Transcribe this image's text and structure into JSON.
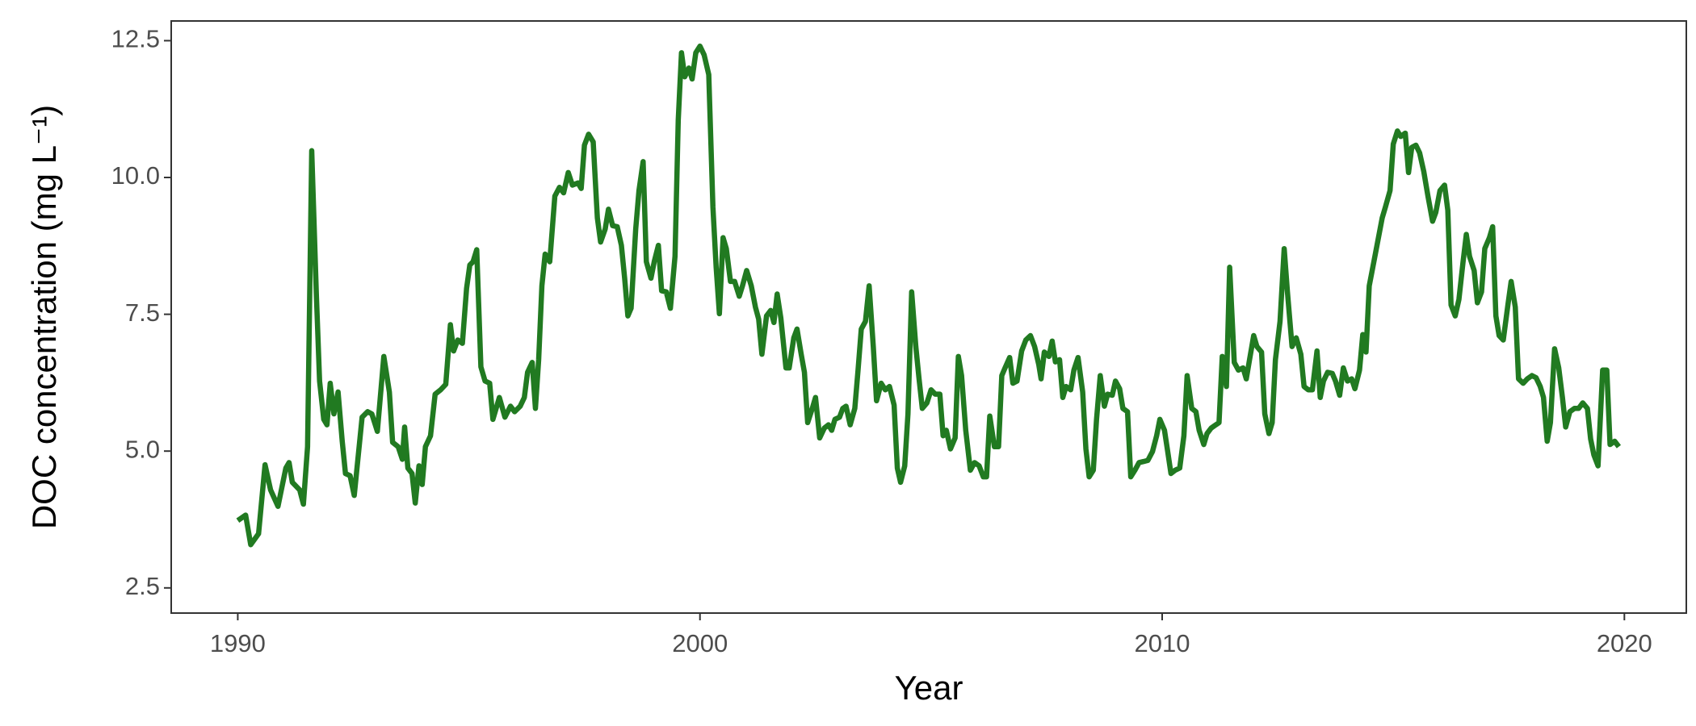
{
  "chart_data": {
    "type": "line",
    "x_label": "Year",
    "y_label": "DOC concentration (mg L⁻¹)",
    "color": "#217a21",
    "xlim": [
      1988.56,
      2021.34
    ],
    "ylim": [
      2.04,
      12.86
    ],
    "xticks": [
      1990,
      2000,
      2010,
      2020
    ],
    "yticks": [
      2.5,
      {
        "value": 5,
        "label": "5.0"
      },
      7.5,
      {
        "value": 10,
        "label": "10.0"
      },
      12.5
    ],
    "grid": false,
    "x": [
      1990,
      1990.17,
      1990.28,
      1990.45,
      1990.59,
      1990.71,
      1990.87,
      1991.04,
      1991.11,
      1991.18,
      1991.34,
      1991.42,
      1991.51,
      1991.6,
      1991.7,
      1991.77,
      1991.86,
      1991.93,
      1992,
      1992.08,
      1992.17,
      1992.26,
      1992.33,
      1992.43,
      1992.52,
      1992.69,
      1992.81,
      1992.9,
      1993.02,
      1993.16,
      1993.28,
      1993.35,
      1993.47,
      1993.56,
      1993.61,
      1993.68,
      1993.77,
      1993.84,
      1993.92,
      1993.99,
      1994.06,
      1994.17,
      1994.27,
      1994.39,
      1994.5,
      1994.6,
      1994.67,
      1994.76,
      1994.86,
      1994.95,
      1995.02,
      1995.09,
      1995.17,
      1995.26,
      1995.35,
      1995.45,
      1995.52,
      1995.66,
      1995.78,
      1995.9,
      1995.99,
      1996.11,
      1996.2,
      1996.27,
      1996.37,
      1996.44,
      1996.51,
      1996.58,
      1996.65,
      1996.75,
      1996.86,
      1996.96,
      1997.05,
      1997.15,
      1997.24,
      1997.36,
      1997.43,
      1997.5,
      1997.59,
      1997.69,
      1997.78,
      1997.85,
      1997.95,
      1998.02,
      1998.11,
      1998.21,
      1998.3,
      1998.37,
      1998.44,
      1998.51,
      1998.61,
      1998.68,
      1998.77,
      1998.84,
      1998.94,
      1999.01,
      1999.1,
      1999.17,
      1999.27,
      1999.36,
      1999.46,
      1999.53,
      1999.6,
      1999.67,
      1999.76,
      1999.83,
      1999.91,
      2000,
      2000.09,
      2000.19,
      2000.28,
      2000.35,
      2000.42,
      2000.5,
      2000.57,
      2000.66,
      2000.75,
      2000.85,
      2000.92,
      2001.01,
      2001.11,
      2001.2,
      2001.27,
      2001.34,
      2001.44,
      2001.53,
      2001.6,
      2001.67,
      2001.75,
      2001.86,
      2001.93,
      2002.03,
      2002.1,
      2002.19,
      2002.26,
      2002.33,
      2002.43,
      2002.5,
      2002.59,
      2002.69,
      2002.78,
      2002.85,
      2002.92,
      2003.02,
      2003.09,
      2003.16,
      2003.25,
      2003.35,
      2003.42,
      2003.49,
      2003.58,
      2003.66,
      2003.75,
      2003.82,
      2003.92,
      2004.01,
      2004.1,
      2004.2,
      2004.27,
      2004.34,
      2004.43,
      2004.5,
      2004.58,
      2004.67,
      2004.74,
      2004.81,
      2004.91,
      2005,
      2005.09,
      2005.19,
      2005.26,
      2005.33,
      2005.42,
      2005.52,
      2005.59,
      2005.66,
      2005.75,
      2005.85,
      2005.94,
      2006.04,
      2006.13,
      2006.2,
      2006.27,
      2006.37,
      2006.46,
      2006.53,
      2006.6,
      2006.7,
      2006.77,
      2006.86,
      2006.96,
      2007.05,
      2007.15,
      2007.24,
      2007.33,
      2007.38,
      2007.45,
      2007.55,
      2007.62,
      2007.69,
      2007.78,
      2007.85,
      2007.92,
      2008.02,
      2008.09,
      2008.18,
      2008.28,
      2008.35,
      2008.42,
      2008.51,
      2008.58,
      2008.66,
      2008.75,
      2008.82,
      2008.92,
      2008.99,
      2009.08,
      2009.15,
      2009.25,
      2009.32,
      2009.41,
      2009.5,
      2009.6,
      2009.69,
      2009.79,
      2009.88,
      2009.95,
      2010.05,
      2010.12,
      2010.19,
      2010.28,
      2010.38,
      2010.47,
      2010.54,
      2010.64,
      2010.73,
      2010.8,
      2010.9,
      2010.97,
      2011.06,
      2011.16,
      2011.23,
      2011.3,
      2011.39,
      2011.46,
      2011.56,
      2011.65,
      2011.75,
      2011.82,
      2011.89,
      2011.98,
      2012.05,
      2012.15,
      2012.22,
      2012.31,
      2012.38,
      2012.45,
      2012.55,
      2012.64,
      2012.71,
      2012.81,
      2012.9,
      2013,
      2013.07,
      2013.16,
      2013.25,
      2013.35,
      2013.42,
      2013.49,
      2013.58,
      2013.68,
      2013.75,
      2013.84,
      2013.92,
      2014.01,
      2014.1,
      2014.17,
      2014.27,
      2014.34,
      2014.41,
      2014.48,
      2014.58,
      2014.67,
      2014.76,
      2014.83,
      2014.93,
      2015,
      2015.09,
      2015.16,
      2015.26,
      2015.33,
      2015.4,
      2015.49,
      2015.57,
      2015.66,
      2015.75,
      2015.85,
      2015.92,
      2016.01,
      2016.11,
      2016.18,
      2016.25,
      2016.34,
      2016.42,
      2016.51,
      2016.58,
      2016.65,
      2016.75,
      2016.82,
      2016.91,
      2016.98,
      2017.08,
      2017.15,
      2017.22,
      2017.29,
      2017.38,
      2017.48,
      2017.55,
      2017.64,
      2017.71,
      2017.81,
      2017.9,
      2018,
      2018.09,
      2018.18,
      2018.25,
      2018.33,
      2018.4,
      2018.49,
      2018.58,
      2018.66,
      2018.73,
      2018.82,
      2018.92,
      2019.01,
      2019.1,
      2019.2,
      2019.27,
      2019.34,
      2019.43,
      2019.53,
      2019.62,
      2019.69,
      2019.79,
      2019.88
    ],
    "values": [
      3.73,
      3.83,
      3.29,
      3.49,
      4.75,
      4.29,
      3.99,
      4.69,
      4.79,
      4.43,
      4.29,
      4.03,
      5.08,
      10.49,
      7.87,
      6.28,
      5.58,
      5.48,
      6.24,
      5.68,
      6.08,
      5.18,
      4.59,
      4.55,
      4.19,
      5.62,
      5.72,
      5.68,
      5.36,
      6.73,
      6.08,
      5.16,
      5.08,
      4.85,
      5.44,
      4.69,
      4.59,
      4.05,
      4.73,
      4.39,
      5.08,
      5.28,
      6.04,
      6.12,
      6.22,
      7.31,
      6.83,
      7.03,
      6.97,
      7.97,
      8.4,
      8.46,
      8.68,
      6.54,
      6.28,
      6.24,
      5.58,
      5.98,
      5.62,
      5.82,
      5.72,
      5.82,
      5.98,
      6.44,
      6.62,
      5.78,
      6.67,
      8.02,
      8.6,
      8.46,
      9.66,
      9.82,
      9.72,
      10.09,
      9.86,
      9.9,
      9.8,
      10.59,
      10.79,
      10.65,
      9.26,
      8.82,
      9.06,
      9.42,
      9.12,
      9.1,
      8.76,
      8.16,
      7.47,
      7.61,
      9.06,
      9.76,
      10.29,
      8.46,
      8.16,
      8.46,
      8.76,
      7.93,
      7.91,
      7.61,
      8.56,
      11.05,
      12.28,
      11.84,
      12,
      11.8,
      12.28,
      12.4,
      12.24,
      11.88,
      9.46,
      8.36,
      7.51,
      8.9,
      8.7,
      8.1,
      8.1,
      7.83,
      8.02,
      8.3,
      8.02,
      7.63,
      7.41,
      6.77,
      7.47,
      7.57,
      7.35,
      7.87,
      7.43,
      6.52,
      6.52,
      7.07,
      7.23,
      6.77,
      6.44,
      5.52,
      5.78,
      5.98,
      5.24,
      5.42,
      5.48,
      5.38,
      5.58,
      5.62,
      5.78,
      5.82,
      5.48,
      5.78,
      6.48,
      7.23,
      7.37,
      8.02,
      6.91,
      5.92,
      6.24,
      6.12,
      6.18,
      5.84,
      4.69,
      4.43,
      4.73,
      5.68,
      7.91,
      6.91,
      6.32,
      5.78,
      5.88,
      6.12,
      6.04,
      6.04,
      5.28,
      5.38,
      5.04,
      5.24,
      6.73,
      6.38,
      5.38,
      4.65,
      4.79,
      4.73,
      4.53,
      4.53,
      5.64,
      5.08,
      5.08,
      6.38,
      6.52,
      6.71,
      6.24,
      6.28,
      6.83,
      7.03,
      7.11,
      6.91,
      6.58,
      6.32,
      6.81,
      6.73,
      7.01,
      6.63,
      6.67,
      5.98,
      6.18,
      6.12,
      6.48,
      6.71,
      6.08,
      5.04,
      4.53,
      4.65,
      5.58,
      6.38,
      5.82,
      6.04,
      6.02,
      6.28,
      6.14,
      5.78,
      5.72,
      4.53,
      4.65,
      4.79,
      4.81,
      4.83,
      4.99,
      5.28,
      5.58,
      5.38,
      4.99,
      4.59,
      4.65,
      4.69,
      5.28,
      6.38,
      5.78,
      5.72,
      5.38,
      5.12,
      5.32,
      5.42,
      5.48,
      5.52,
      6.73,
      6.18,
      8.36,
      6.62,
      6.48,
      6.52,
      6.32,
      6.67,
      7.11,
      6.91,
      6.81,
      5.68,
      5.32,
      5.52,
      6.67,
      7.37,
      8.7,
      7.91,
      6.91,
      7.07,
      6.77,
      6.18,
      6.12,
      6.12,
      6.83,
      5.98,
      6.28,
      6.44,
      6.42,
      6.28,
      6.02,
      6.52,
      6.28,
      6.32,
      6.14,
      6.48,
      7.13,
      6.81,
      8.02,
      8.46,
      8.86,
      9.26,
      9.46,
      9.76,
      10.61,
      10.85,
      10.75,
      10.81,
      10.09,
      10.55,
      10.59,
      10.45,
      10.11,
      9.66,
      9.2,
      9.36,
      9.76,
      9.86,
      9.4,
      7.67,
      7.47,
      7.77,
      8.46,
      8.96,
      8.56,
      8.3,
      7.71,
      7.91,
      8.7,
      8.9,
      9.1,
      7.47,
      7.11,
      7.03,
      7.67,
      8.1,
      7.63,
      6.32,
      6.24,
      6.32,
      6.38,
      6.34,
      6.18,
      5.98,
      5.18,
      5.52,
      6.87,
      6.52,
      5.98,
      5.44,
      5.72,
      5.78,
      5.78,
      5.88,
      5.78,
      5.22,
      4.93,
      4.73,
      6.48,
      6.48,
      5.12,
      5.18,
      5.08
    ]
  }
}
